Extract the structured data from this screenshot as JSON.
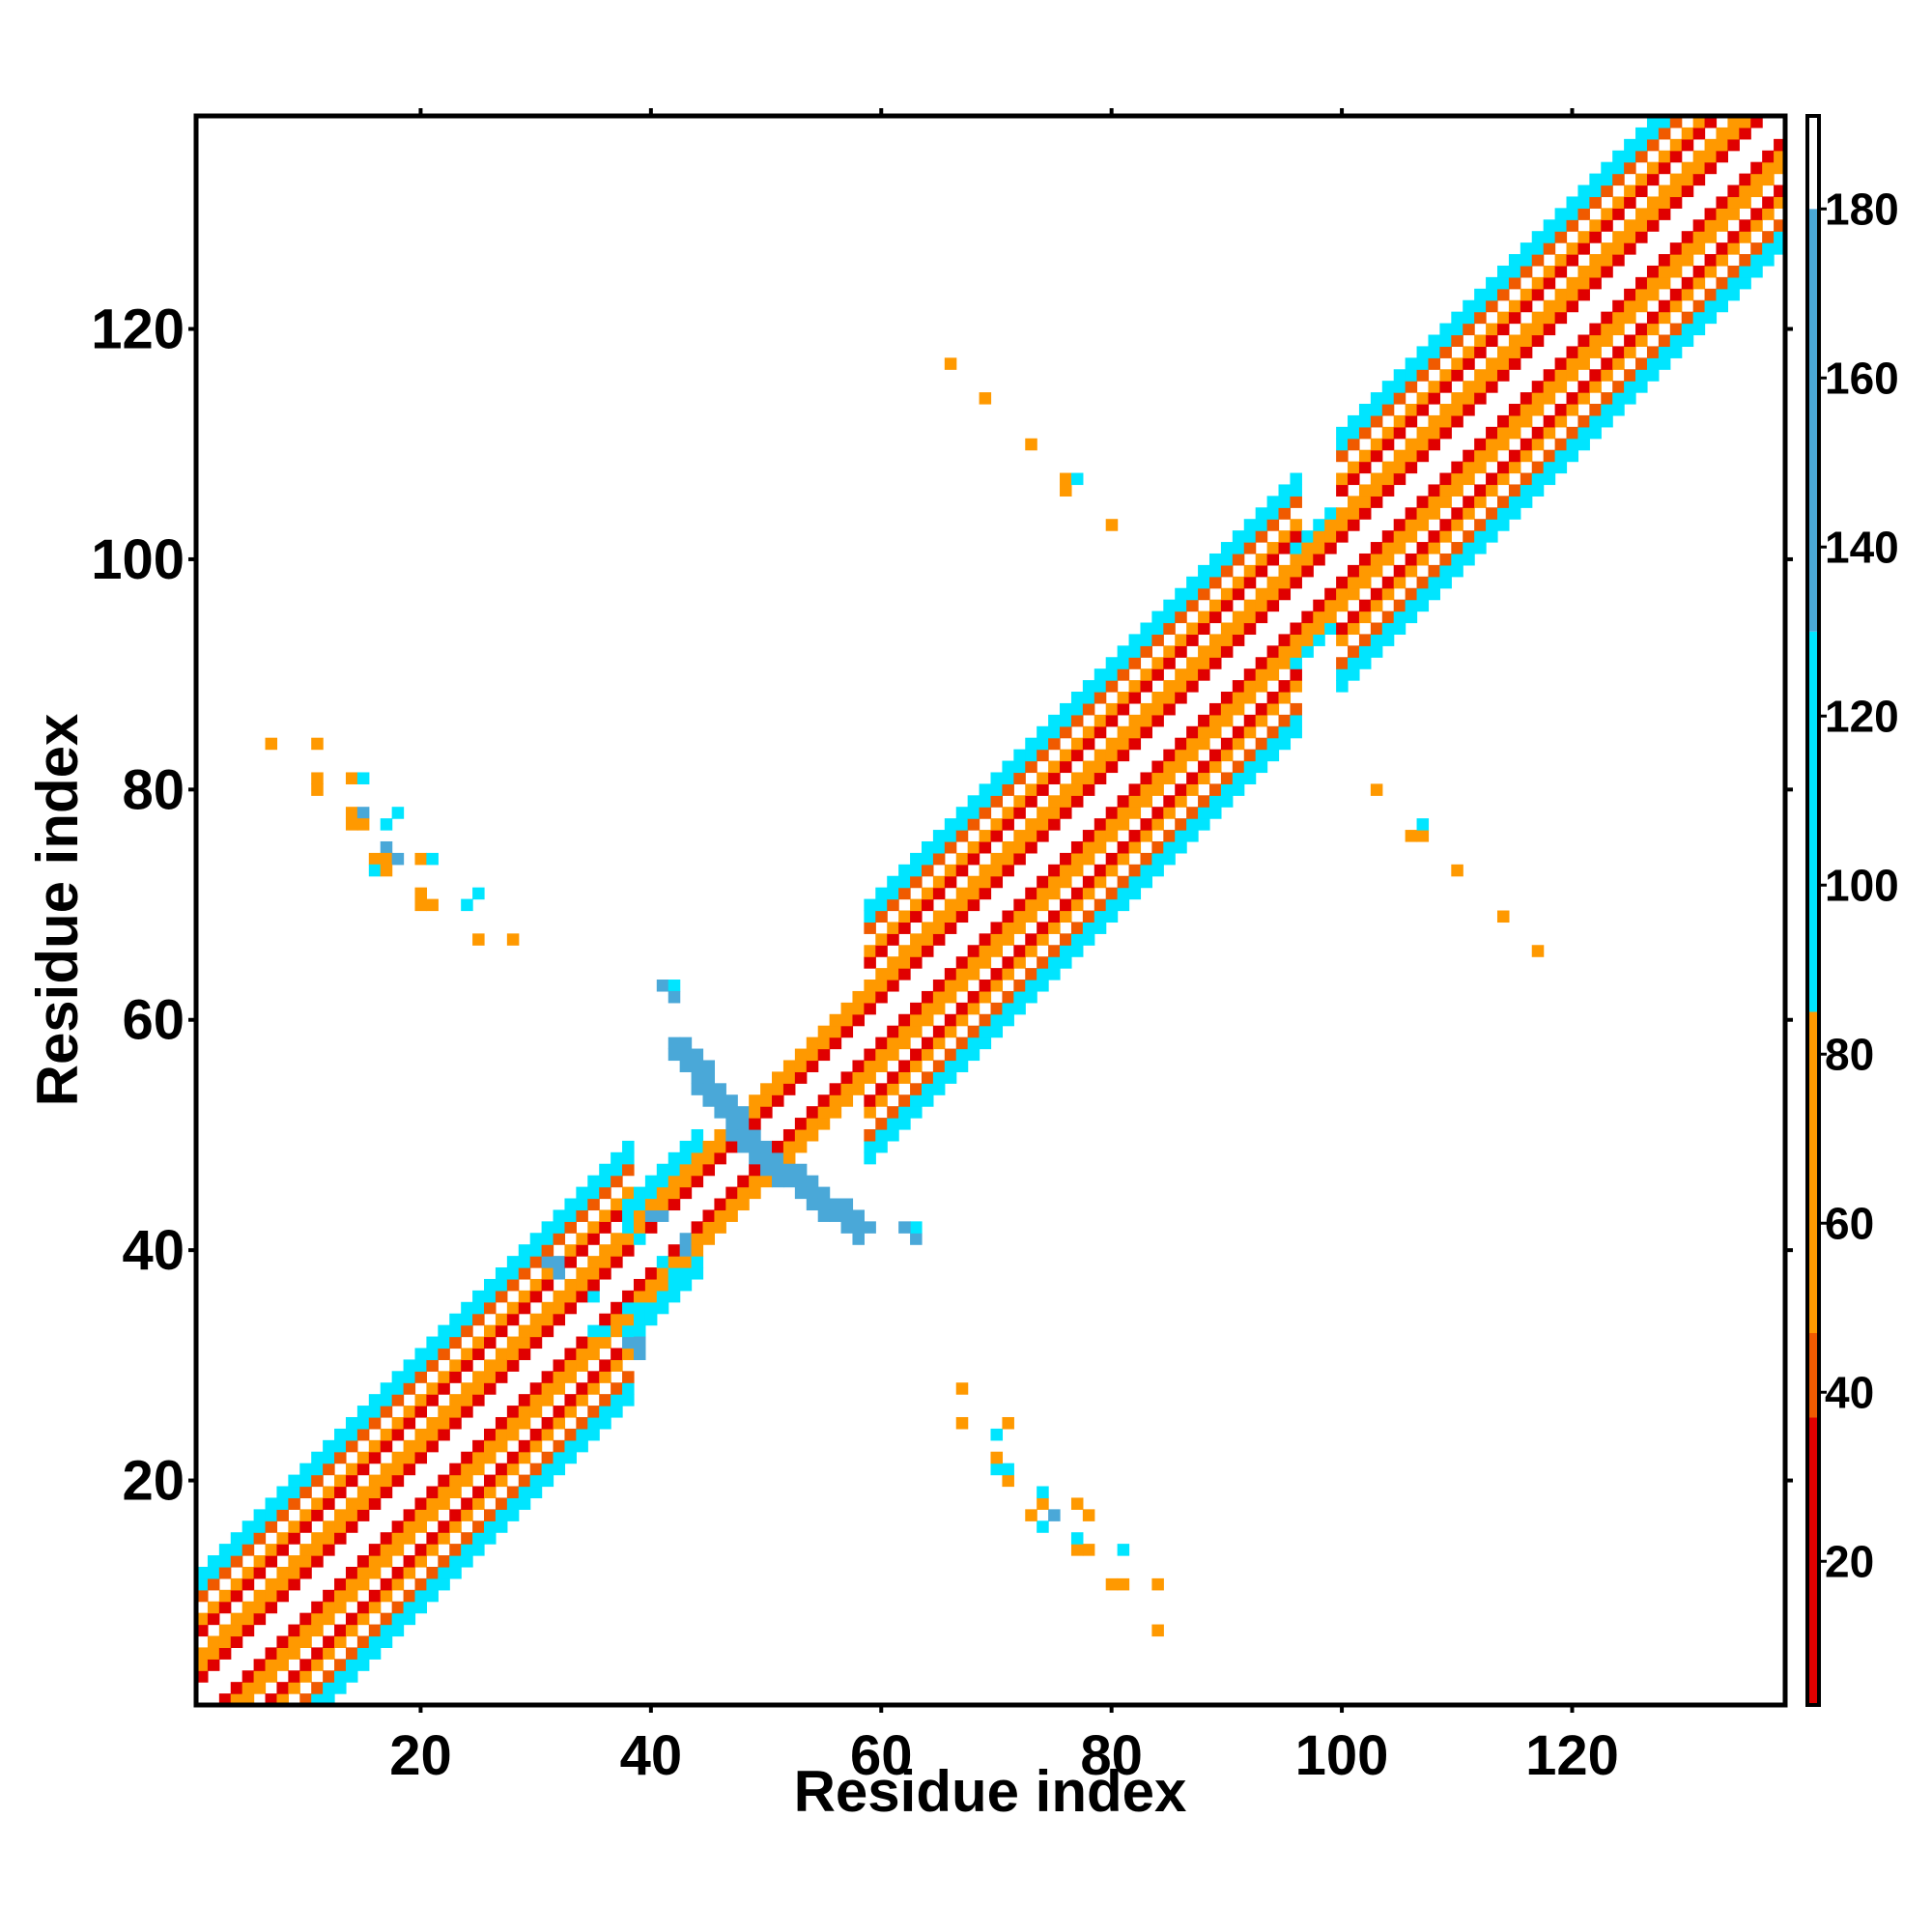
{
  "chart_data": {
    "type": "heatmap",
    "title": "",
    "xlabel": "Residue index",
    "ylabel": "Residue index",
    "xlim": [
      1,
      138
    ],
    "ylim": [
      1,
      138
    ],
    "x_ticks": [
      20,
      40,
      60,
      80,
      100,
      120
    ],
    "y_ticks": [
      20,
      40,
      60,
      80,
      100,
      120
    ],
    "colorbar": {
      "range": [
        3,
        191
      ],
      "ticks": [
        20,
        40,
        60,
        80,
        100,
        120,
        140,
        160,
        180
      ],
      "bands": [
        {
          "min": 3,
          "max": 37,
          "color": "#e00000"
        },
        {
          "min": 37,
          "max": 47,
          "color": "#f05a00"
        },
        {
          "min": 47,
          "max": 85,
          "color": "#ff9900"
        },
        {
          "min": 85,
          "max": 130,
          "color": "#00e5ff"
        },
        {
          "min": 130,
          "max": 180,
          "color": "#4aa8d8"
        },
        {
          "min": 180,
          "max": 191,
          "color": "#ffffff"
        }
      ]
    },
    "grid": false,
    "diagonal_band": {
      "segments": [
        {
          "from": 1,
          "to": 38,
          "width": 11
        },
        {
          "from": 38,
          "to": 44,
          "width": 6
        },
        {
          "from": 44,
          "to": 59,
          "width": 4
        },
        {
          "from": 59,
          "to": 96,
          "width": 11
        },
        {
          "from": 96,
          "to": 100,
          "width": 5
        },
        {
          "from": 100,
          "to": 138,
          "width": 11
        }
      ]
    },
    "cross_pattern": {
      "center": [
        49,
        49
      ],
      "arms": [
        [
          42,
          58
        ],
        [
          58,
          42
        ]
      ],
      "blocks": [
        [
          41.5,
          62.5
        ],
        [
          62.5,
          41.5
        ]
      ],
      "value": 150
    },
    "extra_cells": [
      [
        7,
        84,
        75
      ],
      [
        11,
        84,
        50
      ],
      [
        11,
        81,
        75
      ],
      [
        11,
        80,
        75
      ],
      [
        14,
        81,
        50
      ],
      [
        15,
        81,
        110
      ],
      [
        14,
        78,
        75
      ],
      [
        15,
        78,
        150
      ],
      [
        14,
        77,
        50
      ],
      [
        15,
        77,
        50
      ],
      [
        17,
        77,
        110
      ],
      [
        18,
        78,
        110
      ],
      [
        17,
        75,
        150
      ],
      [
        16,
        74,
        50
      ],
      [
        17,
        74,
        75
      ],
      [
        18,
        74,
        150
      ],
      [
        16,
        73,
        110
      ],
      [
        17,
        73,
        50
      ],
      [
        20,
        74,
        50
      ],
      [
        21,
        74,
        110
      ],
      [
        20,
        71,
        75
      ],
      [
        21,
        70,
        50
      ],
      [
        20,
        70,
        50
      ],
      [
        24,
        70,
        110
      ],
      [
        25,
        71,
        110
      ],
      [
        25,
        67,
        75
      ],
      [
        28,
        67,
        75
      ],
      [
        84,
        7,
        75
      ],
      [
        84,
        11,
        50
      ],
      [
        80,
        11,
        75
      ],
      [
        81,
        11,
        75
      ],
      [
        81,
        14,
        110
      ],
      [
        78,
        14,
        75
      ],
      [
        77,
        14,
        50
      ],
      [
        77,
        15,
        110
      ],
      [
        78,
        17,
        50
      ],
      [
        77,
        18,
        50
      ],
      [
        75,
        17,
        150
      ],
      [
        74,
        16,
        110
      ],
      [
        74,
        18,
        50
      ],
      [
        73,
        17,
        75
      ],
      [
        74,
        19,
        110
      ],
      [
        71,
        20,
        50
      ],
      [
        70,
        21,
        110
      ],
      [
        71,
        21,
        110
      ],
      [
        70,
        22,
        50
      ],
      [
        67,
        25,
        75
      ],
      [
        67,
        28,
        75
      ],
      [
        70,
        24,
        110
      ],
      [
        71,
        25,
        50
      ],
      [
        66,
        117,
        50
      ],
      [
        69,
        114,
        75
      ],
      [
        73,
        110,
        50
      ],
      [
        76,
        107,
        75
      ],
      [
        76,
        106,
        75
      ],
      [
        77,
        107,
        110
      ],
      [
        80,
        103,
        50
      ],
      [
        103,
        80,
        50
      ],
      [
        106,
        76,
        75
      ],
      [
        107,
        76,
        75
      ],
      [
        107,
        77,
        110
      ],
      [
        110,
        73,
        50
      ],
      [
        114,
        69,
        75
      ],
      [
        117,
        66,
        50
      ],
      [
        41,
        63,
        150
      ],
      [
        42,
        63,
        110
      ],
      [
        42,
        62,
        150
      ],
      [
        63,
        41,
        150
      ],
      [
        63,
        42,
        110
      ],
      [
        62,
        42,
        150
      ],
      [
        32,
        39,
        150
      ],
      [
        32,
        38,
        150
      ],
      [
        31,
        39,
        150
      ],
      [
        39,
        32,
        150
      ],
      [
        38,
        32,
        150
      ],
      [
        39,
        31,
        150
      ],
      [
        38,
        35,
        110
      ],
      [
        39,
        35,
        110
      ],
      [
        35,
        36,
        110
      ],
      [
        36,
        33,
        110
      ],
      [
        35,
        33,
        110
      ],
      [
        41,
        43,
        150
      ],
      [
        40,
        43,
        150
      ],
      [
        43,
        40,
        150
      ],
      [
        43,
        41,
        150
      ],
      [
        42,
        38,
        110
      ],
      [
        43,
        38,
        110
      ],
      [
        41,
        39,
        110
      ],
      [
        38,
        42,
        110
      ],
      [
        39,
        41,
        110
      ]
    ]
  }
}
